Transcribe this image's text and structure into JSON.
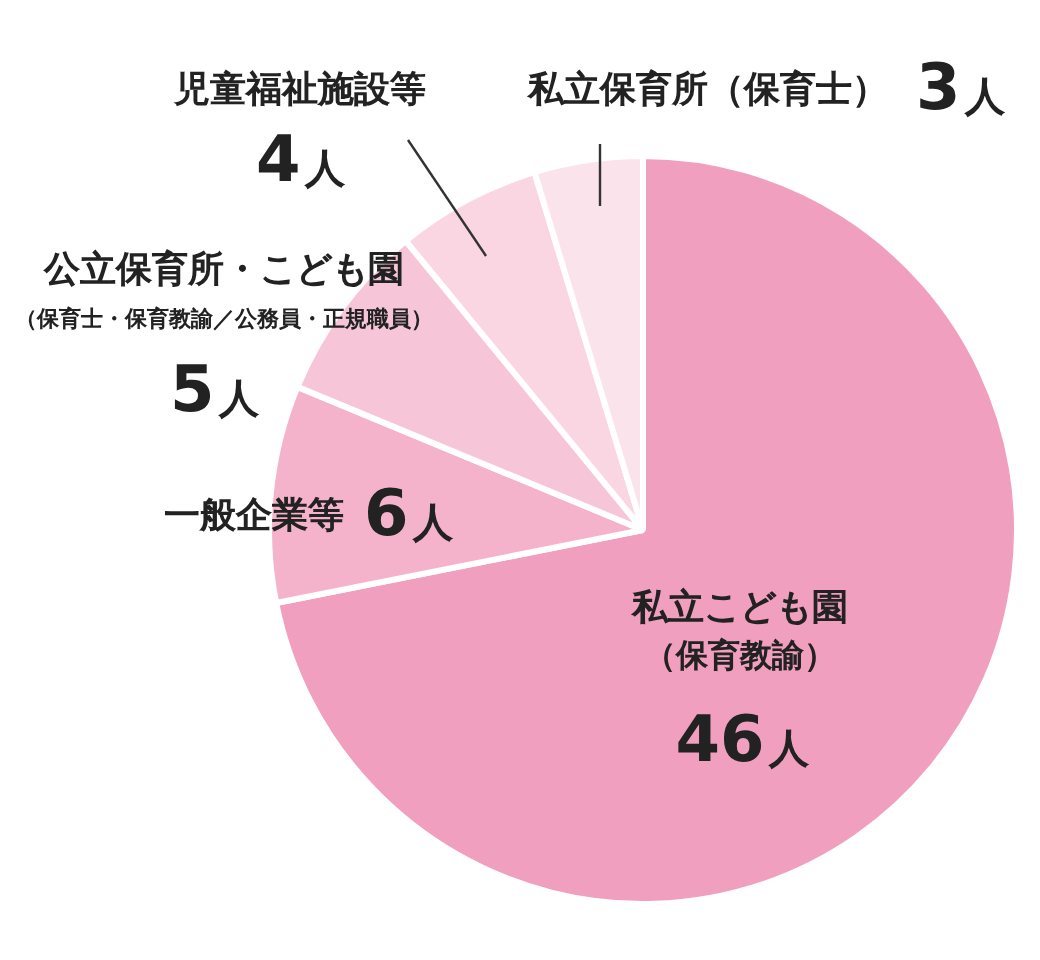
{
  "chart_data": {
    "type": "pie",
    "categories": [
      "私立こども園（保育教諭）",
      "一般企業等",
      "公立保育所・こども園（保育士・保育教諭／公務員・正規職員）",
      "児童福祉施設等",
      "私立保育所（保育士）"
    ],
    "values": [
      46,
      6,
      5,
      4,
      3
    ],
    "colors": [
      "#f09fbe",
      "#f4b3ca",
      "#f6c6d8",
      "#f9d6e2",
      "#fbe3eb"
    ],
    "value_labels": [
      "46人",
      "6人",
      "5人",
      "4人",
      "3人"
    ],
    "legend": false
  }
}
